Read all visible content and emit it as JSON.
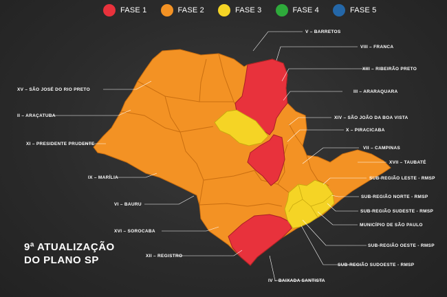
{
  "legend": [
    {
      "label": "FASE 1",
      "color": "#e8323c"
    },
    {
      "label": "FASE 2",
      "color": "#f39224"
    },
    {
      "label": "FASE 3",
      "color": "#f5d425"
    },
    {
      "label": "FASE 4",
      "color": "#2eaa3b"
    },
    {
      "label": "FASE 5",
      "color": "#2467a8"
    }
  ],
  "title": {
    "line1": "9ª ATUALIZAÇÃO",
    "line2": "DO PLANO SP"
  },
  "regions": {
    "barretos": "V – BARRETOS",
    "franca": "VIII – FRANCA",
    "ribeirao_preto": "XIII – RIBEIRÃO PRETO",
    "araraquara": "III – ARARAQUARA",
    "sao_jose_rio_preto": "XV – SÃO JOSÉ DO RIO PRETO",
    "aracatuba": "II – ARAÇATUBA",
    "sao_joao_boa_vista": "XIV – SÃO JOÃO DA BOA VISTA",
    "piracicaba": "X – PIRACICABA",
    "presidente_prudente": "XI – PRESIDENTE PRUDENTE",
    "campinas": "VII – CAMPINAS",
    "taubate": "XVII – TAUBATÉ",
    "marilia": "IX – MARÍLIA",
    "sub_leste": "SUB-REGIÃO LESTE - RMSP",
    "sub_norte": "SUB-REGIÃO NORTE - RMSP",
    "bauru": "VI – BAURU",
    "sub_sudeste": "SUB-REGIÃO SUDESTE - RMSP",
    "municipio_sp": "MUNICÍPIO DE SÃO PAULO",
    "sorocaba": "XVI – SOROCABA",
    "sub_oeste": "SUB-REGIÃO OESTE - RMSP",
    "registro": "XII – REGISTRO",
    "sub_sudoeste": "SUB-REGIÃO SUDOESTE - RMSP",
    "baixada_santista": "IV – BAIXADA SANTISTA"
  }
}
